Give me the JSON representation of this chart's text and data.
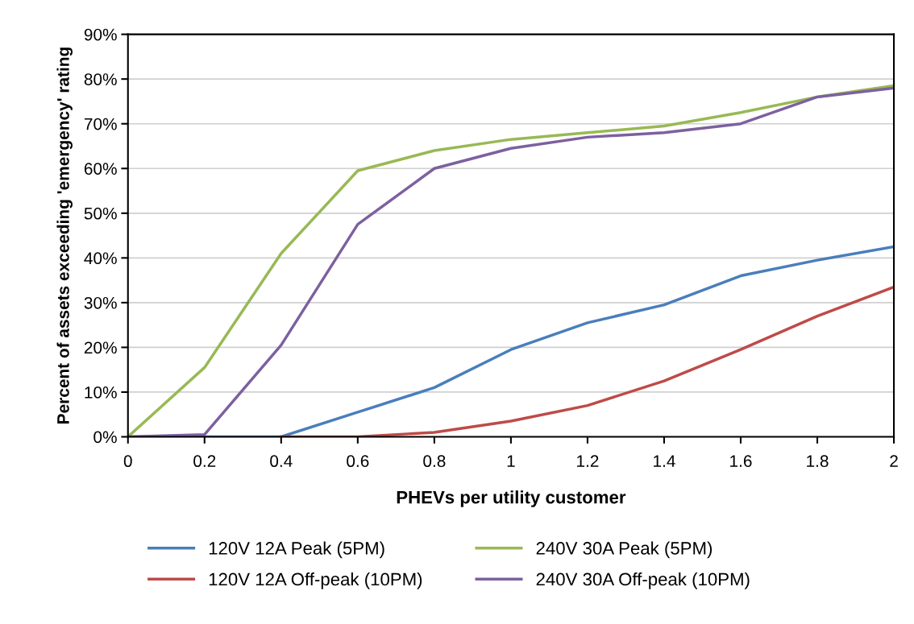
{
  "chart_data": {
    "type": "line",
    "xlabel": "PHEVs per utility customer",
    "ylabel": "Percent of assets exceeding 'emergency' rating",
    "x": [
      0,
      0.2,
      0.4,
      0.6,
      0.8,
      1,
      1.2,
      1.4,
      1.6,
      1.8,
      2
    ],
    "series": [
      {
        "name": "120V 12A Peak (5PM)",
        "color": "#4a7ebb",
        "values": [
          0,
          0,
          0,
          5.5,
          11,
          19.5,
          25.5,
          29.5,
          36,
          39.5,
          42.5
        ]
      },
      {
        "name": "120V 12A Off-peak (10PM)",
        "color": "#be4b48",
        "values": [
          null,
          null,
          0,
          0,
          1,
          3.5,
          7,
          12.5,
          19.5,
          27,
          33.5
        ]
      },
      {
        "name": "240V 30A Peak (5PM)",
        "color": "#98b954",
        "values": [
          0,
          15.5,
          41,
          59.5,
          64,
          66.5,
          68,
          69.5,
          72.5,
          76,
          78.5
        ]
      },
      {
        "name": "240V 30A Off-peak (10PM)",
        "color": "#7d60a0",
        "values": [
          0,
          0.5,
          20.5,
          47.5,
          60,
          64.5,
          67,
          68,
          70,
          76,
          78
        ]
      }
    ],
    "xlim": [
      0,
      2
    ],
    "xticks": [
      0,
      0.2,
      0.4,
      0.6,
      0.8,
      1,
      1.2,
      1.4,
      1.6,
      1.8,
      2
    ],
    "ylim": [
      0,
      90
    ],
    "yticks": [
      {
        "value": 0,
        "label": "0%"
      },
      {
        "value": 10,
        "label": "10%"
      },
      {
        "value": 20,
        "label": "20%"
      },
      {
        "value": 30,
        "label": "30%"
      },
      {
        "value": 40,
        "label": "40%"
      },
      {
        "value": 50,
        "label": "50%"
      },
      {
        "value": 60,
        "label": "60%"
      },
      {
        "value": 70,
        "label": "70%"
      },
      {
        "value": 80,
        "label": "80%"
      },
      {
        "value": 90,
        "label": "90%"
      }
    ],
    "grid": "y",
    "legend": "bottom",
    "marker": "none",
    "line_style": "solid"
  }
}
